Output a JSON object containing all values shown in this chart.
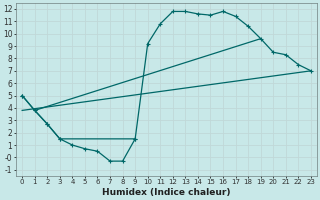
{
  "xlabel": "Humidex (Indice chaleur)",
  "bg_color": "#c8e8e8",
  "grid_color": "#c0d8d8",
  "line_color": "#006868",
  "xlim": [
    -0.5,
    23.5
  ],
  "ylim": [
    -1.5,
    12.5
  ],
  "xticks": [
    0,
    1,
    2,
    3,
    4,
    5,
    6,
    7,
    8,
    9,
    10,
    11,
    12,
    13,
    14,
    15,
    16,
    17,
    18,
    19,
    20,
    21,
    22,
    23
  ],
  "yticks": [
    -1,
    0,
    1,
    2,
    3,
    4,
    5,
    6,
    7,
    8,
    9,
    10,
    11,
    12
  ],
  "series1_x": [
    0,
    1,
    2,
    3,
    4,
    5,
    6,
    7,
    8,
    9,
    10,
    11,
    12,
    13,
    14,
    15,
    16,
    17,
    18
  ],
  "series1_y": [
    5,
    3.8,
    2.7,
    1.5,
    1.0,
    0.7,
    0.5,
    -0.3,
    -0.3,
    1.5,
    9.2,
    10.8,
    11.8,
    11.8,
    11.6,
    11.5,
    11.8,
    11.4,
    10.6
  ],
  "series2_x": [
    10,
    11,
    12,
    13,
    14,
    15,
    16,
    17,
    18,
    19,
    20,
    21,
    22,
    23
  ],
  "series2_y": [
    9.2,
    10.8,
    11.8,
    11.8,
    11.6,
    11.5,
    11.8,
    11.4,
    10.6,
    9.6,
    8.5,
    8.3,
    7.5,
    7.0
  ],
  "small_loop_x": [
    0,
    1,
    2,
    3,
    4,
    5,
    6,
    7,
    8,
    9
  ],
  "small_loop_y": [
    5,
    3.8,
    2.7,
    1.5,
    1.0,
    0.7,
    0.5,
    -0.3,
    -0.3,
    1.5
  ],
  "line1_x": [
    0,
    23
  ],
  "line1_y": [
    4.5,
    7.0
  ],
  "line2_x": [
    0,
    23
  ],
  "line2_y": [
    4.0,
    7.0
  ],
  "line3_x": [
    0,
    23
  ],
  "line3_y": [
    3.8,
    7.0
  ],
  "upper_curve_x": [
    0,
    1,
    2,
    3,
    9,
    10,
    11,
    12,
    13,
    14,
    15,
    16,
    17,
    18,
    19,
    20,
    21,
    22,
    23
  ],
  "upper_curve_y": [
    5,
    3.8,
    2.7,
    1.5,
    1.5,
    9.2,
    10.8,
    11.8,
    11.8,
    11.6,
    11.5,
    11.8,
    11.4,
    10.6,
    9.6,
    8.5,
    8.3,
    7.5,
    7.0
  ],
  "lower_loop_x": [
    0,
    1,
    2,
    3,
    4,
    5,
    6,
    7,
    8,
    9
  ],
  "lower_loop_y": [
    5,
    3.8,
    2.7,
    1.5,
    1.0,
    0.7,
    0.5,
    -0.3,
    -0.3,
    1.5
  ]
}
